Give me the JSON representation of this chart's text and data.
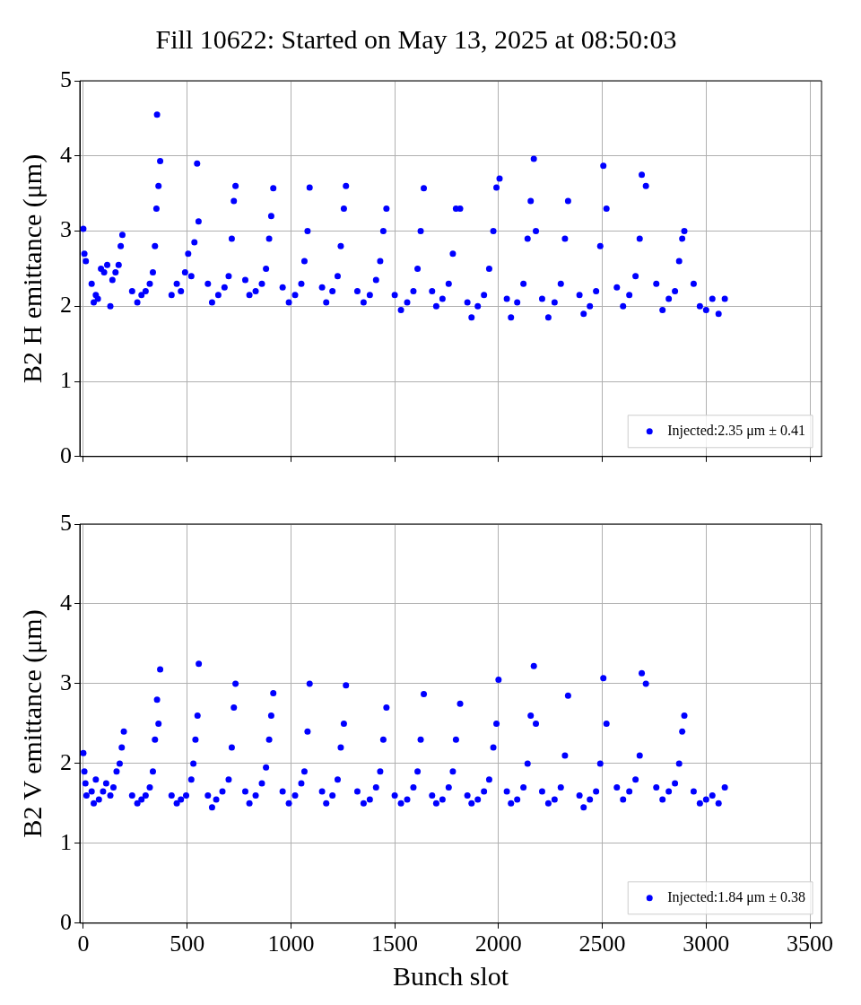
{
  "chart_data": [
    {
      "type": "scatter",
      "title": "Fill 10622: Started on May 13, 2025 at 08:50:03",
      "ylabel": "B2 H emittance (μm)",
      "xlim": [
        -17,
        3556
      ],
      "xticks": [
        0,
        500,
        1000,
        1500,
        2000,
        2500,
        3000,
        3500
      ],
      "ylim": [
        0,
        5
      ],
      "yticks": [
        0,
        1,
        2,
        3,
        4,
        5
      ],
      "grid": true,
      "legend": "bottom right",
      "marker": "circle",
      "tick_labels": "y",
      "series": [
        {
          "name": "Injected:2.35 μm ± 0.41",
          "color": "#0000ff",
          "x": [
            0,
            5,
            12,
            40,
            50,
            60,
            70,
            85,
            100,
            115,
            130,
            140,
            155,
            170,
            180,
            188,
            235,
            260,
            280,
            300,
            320,
            335,
            345,
            352,
            355,
            362,
            370,
            425,
            450,
            470,
            490,
            505,
            520,
            535,
            548,
            555,
            600,
            620,
            650,
            680,
            700,
            715,
            725,
            733,
            780,
            800,
            830,
            860,
            880,
            895,
            905,
            915,
            960,
            990,
            1020,
            1050,
            1065,
            1080,
            1090,
            1150,
            1170,
            1200,
            1225,
            1240,
            1255,
            1265,
            1320,
            1350,
            1380,
            1410,
            1430,
            1445,
            1460,
            1500,
            1530,
            1560,
            1590,
            1610,
            1625,
            1640,
            1680,
            1700,
            1730,
            1760,
            1780,
            1795,
            1815,
            1850,
            1870,
            1900,
            1930,
            1955,
            1975,
            1990,
            2005,
            2040,
            2060,
            2090,
            2120,
            2140,
            2155,
            2170,
            2180,
            2210,
            2240,
            2270,
            2300,
            2320,
            2335,
            2390,
            2410,
            2440,
            2470,
            2490,
            2505,
            2520,
            2570,
            2600,
            2630,
            2660,
            2680,
            2690,
            2710,
            2760,
            2790,
            2820,
            2850,
            2870,
            2885,
            2895,
            2940,
            2970,
            3000,
            3030,
            3060,
            3090
          ],
          "values": [
            3.03,
            2.7,
            2.6,
            2.3,
            2.05,
            2.15,
            2.1,
            2.5,
            2.45,
            2.55,
            2.0,
            2.35,
            2.45,
            2.55,
            2.8,
            2.95,
            2.2,
            2.05,
            2.15,
            2.2,
            2.3,
            2.45,
            2.8,
            3.3,
            4.55,
            3.6,
            3.93,
            2.15,
            2.3,
            2.2,
            2.45,
            2.7,
            2.4,
            2.85,
            3.9,
            3.13,
            2.3,
            2.05,
            2.15,
            2.25,
            2.4,
            2.9,
            3.4,
            3.6,
            2.35,
            2.15,
            2.2,
            2.3,
            2.5,
            2.9,
            3.2,
            3.57,
            2.25,
            2.05,
            2.15,
            2.3,
            2.6,
            3.0,
            3.58,
            2.25,
            2.05,
            2.2,
            2.4,
            2.8,
            3.3,
            3.6,
            2.2,
            2.05,
            2.15,
            2.35,
            2.6,
            3.0,
            3.3,
            2.15,
            1.95,
            2.05,
            2.2,
            2.5,
            3.0,
            3.57,
            2.2,
            2.0,
            2.1,
            2.3,
            2.7,
            3.3,
            3.3,
            2.05,
            1.85,
            2.0,
            2.15,
            2.5,
            3.0,
            3.58,
            3.7,
            2.1,
            1.85,
            2.05,
            2.3,
            2.9,
            3.4,
            3.96,
            3.0,
            2.1,
            1.85,
            2.05,
            2.3,
            2.9,
            3.4,
            2.15,
            1.9,
            2.0,
            2.2,
            2.8,
            3.87,
            3.3,
            2.25,
            2.0,
            2.15,
            2.4,
            2.9,
            3.75,
            3.6,
            2.3,
            1.95,
            2.1,
            2.2,
            2.6,
            2.9,
            3.0,
            2.3,
            2.0,
            1.95,
            2.1,
            1.9,
            2.1
          ]
        }
      ]
    },
    {
      "type": "scatter",
      "xlabel": "Bunch slot",
      "ylabel": "B2 V emittance (μm)",
      "xlim": [
        -17,
        3556
      ],
      "xticks": [
        0,
        500,
        1000,
        1500,
        2000,
        2500,
        3000,
        3500
      ],
      "ylim": [
        0,
        5
      ],
      "yticks": [
        0,
        1,
        2,
        3,
        4,
        5
      ],
      "grid": true,
      "legend": "bottom right",
      "marker": "circle",
      "series": [
        {
          "name": "Injected:1.84 μm ± 0.38",
          "color": "#0000ff",
          "x": [
            0,
            5,
            10,
            15,
            40,
            50,
            60,
            75,
            95,
            110,
            130,
            145,
            160,
            175,
            185,
            195,
            235,
            260,
            280,
            300,
            320,
            335,
            345,
            355,
            362,
            370,
            425,
            450,
            470,
            495,
            520,
            530,
            540,
            550,
            556,
            600,
            620,
            640,
            670,
            700,
            715,
            725,
            733,
            780,
            800,
            830,
            860,
            880,
            895,
            905,
            915,
            960,
            990,
            1020,
            1050,
            1065,
            1080,
            1090,
            1150,
            1170,
            1200,
            1225,
            1240,
            1255,
            1265,
            1320,
            1350,
            1380,
            1410,
            1430,
            1445,
            1460,
            1500,
            1530,
            1560,
            1590,
            1610,
            1625,
            1640,
            1680,
            1700,
            1730,
            1760,
            1780,
            1795,
            1815,
            1850,
            1870,
            1900,
            1930,
            1955,
            1975,
            1990,
            2000,
            2040,
            2060,
            2090,
            2120,
            2140,
            2155,
            2170,
            2180,
            2210,
            2240,
            2270,
            2300,
            2320,
            2335,
            2390,
            2410,
            2440,
            2470,
            2490,
            2505,
            2520,
            2570,
            2600,
            2630,
            2660,
            2680,
            2690,
            2710,
            2760,
            2790,
            2820,
            2850,
            2870,
            2885,
            2895,
            2940,
            2970,
            3000,
            3030,
            3060,
            3090
          ],
          "values": [
            2.13,
            1.9,
            1.75,
            1.6,
            1.65,
            1.5,
            1.8,
            1.55,
            1.65,
            1.75,
            1.6,
            1.7,
            1.9,
            2.0,
            2.2,
            2.4,
            1.6,
            1.5,
            1.55,
            1.6,
            1.7,
            1.9,
            2.3,
            2.8,
            2.5,
            3.18,
            1.6,
            1.5,
            1.55,
            1.6,
            1.8,
            2.0,
            2.3,
            2.6,
            3.25,
            1.6,
            1.45,
            1.55,
            1.65,
            1.8,
            2.2,
            2.7,
            3.0,
            1.65,
            1.5,
            1.6,
            1.75,
            1.95,
            2.3,
            2.6,
            2.88,
            1.65,
            1.5,
            1.6,
            1.75,
            1.9,
            2.4,
            3.0,
            1.65,
            1.5,
            1.6,
            1.8,
            2.2,
            2.5,
            2.98,
            1.65,
            1.5,
            1.55,
            1.7,
            1.9,
            2.3,
            2.7,
            1.6,
            1.5,
            1.55,
            1.7,
            1.9,
            2.3,
            2.87,
            1.6,
            1.5,
            1.55,
            1.7,
            1.9,
            2.3,
            2.75,
            1.6,
            1.5,
            1.55,
            1.65,
            1.8,
            2.2,
            2.5,
            3.05,
            1.65,
            1.5,
            1.55,
            1.7,
            2.0,
            2.6,
            3.22,
            2.5,
            1.65,
            1.5,
            1.55,
            1.7,
            2.1,
            2.85,
            1.6,
            1.45,
            1.55,
            1.65,
            2.0,
            3.07,
            2.5,
            1.7,
            1.55,
            1.65,
            1.8,
            2.1,
            3.13,
            3.0,
            1.7,
            1.55,
            1.65,
            1.75,
            2.0,
            2.4,
            2.6,
            1.65,
            1.5,
            1.55,
            1.6,
            1.5,
            1.7
          ]
        }
      ]
    }
  ]
}
